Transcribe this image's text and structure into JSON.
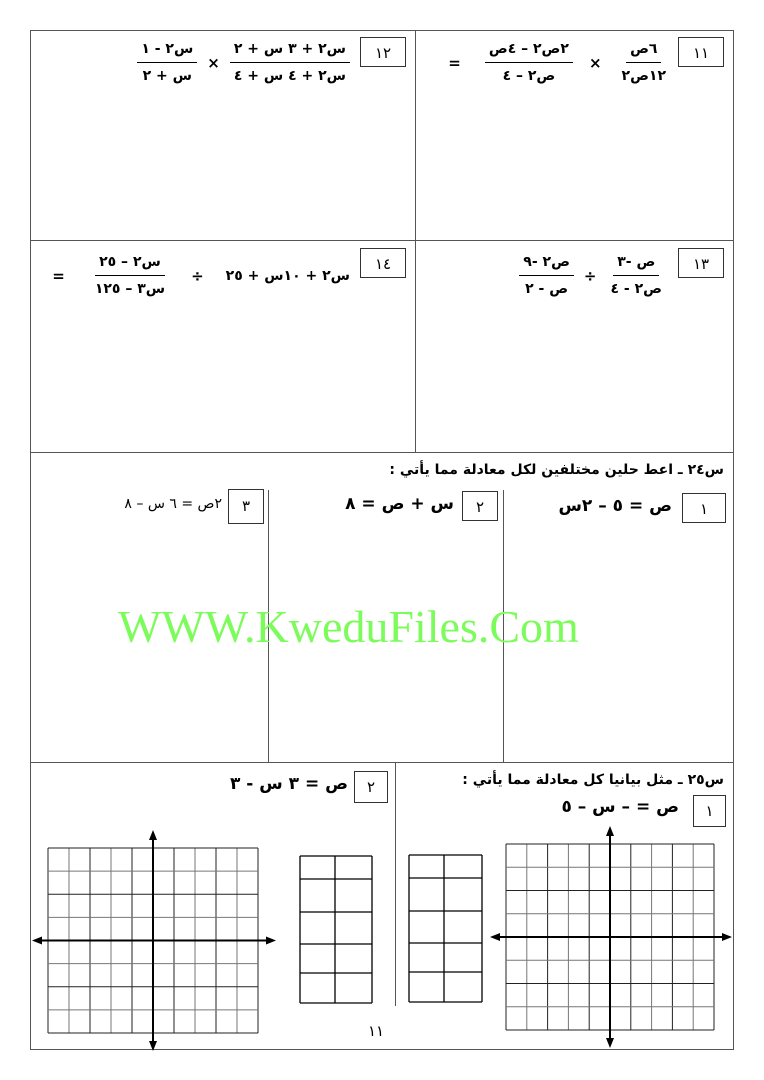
{
  "problems": {
    "p11": {
      "number": "١١",
      "f1_num": "٦ص",
      "f1_den": "١٢ص٢",
      "op": "×",
      "f2_num": "٢ص٢ – ٤ص",
      "f2_den": "ص٢ – ٤",
      "eq": "="
    },
    "p12": {
      "number": "١٢",
      "f1_num": "س٢ + ٣ س + ٢",
      "f1_den": "س٢ + ٤ س + ٤",
      "op": "×",
      "f2_num": "س٢ - ١",
      "f2_den": "س + ٢"
    },
    "p13": {
      "number": "١٣",
      "f1_num": "ص -٣",
      "f1_den": "ص٢ - ٤",
      "op": "÷",
      "f2_num": "ص٢ -٩",
      "f2_den": "ص - ٢"
    },
    "p14": {
      "number": "١٤",
      "term": "س٢ + ١٠س + ٢٥",
      "op": "÷",
      "f_num": "س٢ – ٢٥",
      "f_den": "س٣ – ١٢٥",
      "eq": "="
    }
  },
  "q24": {
    "title": "س٢٤ ـ اعط حلين مختلفين لكل معادلة مما يأتي :",
    "items": [
      {
        "number": "١",
        "equation": "ص = ٥ – ٢س"
      },
      {
        "number": "٢",
        "equation": "س + ص = ٨"
      },
      {
        "number": "٣",
        "equation": "٢ص = ٦ س – ٨"
      }
    ]
  },
  "q25": {
    "title": "س٢٥ ـ مثل بيانيا كل معادلة مما يأتي :",
    "items": [
      {
        "number": "١",
        "equation": "ص = – س – ٥"
      },
      {
        "number": "٢",
        "equation": "ص = ٣ س - ٣"
      }
    ]
  },
  "watermark": "WWW.KweduFiles.Com",
  "page_number": "١١"
}
